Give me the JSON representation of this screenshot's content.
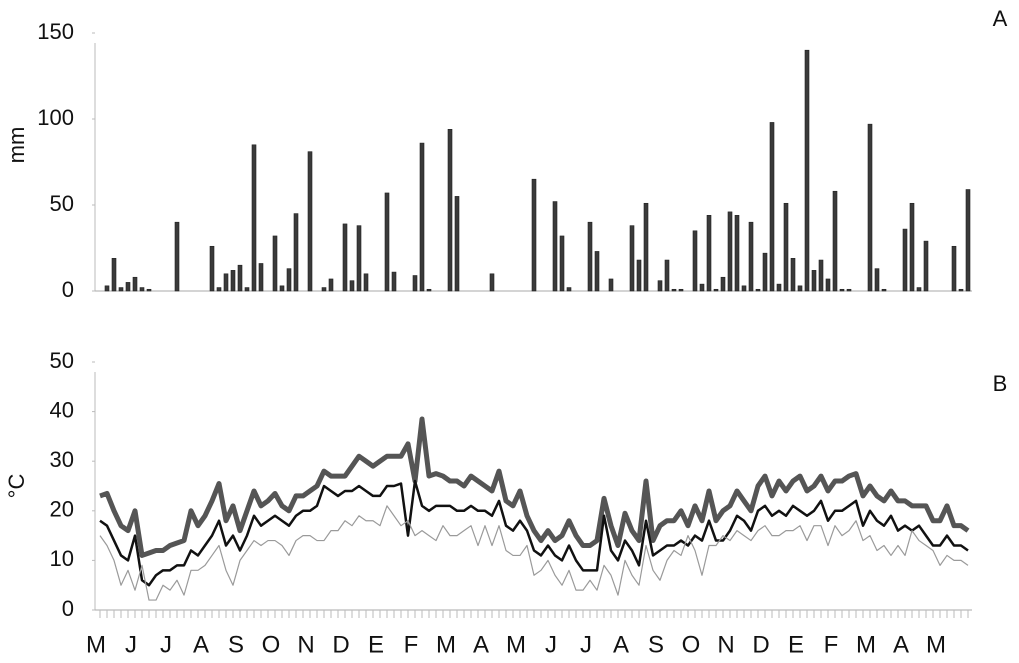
{
  "chart_data": [
    {
      "type": "bar",
      "ylabel": "mm",
      "panel_label": "A",
      "color": "#3a3a3a",
      "ylim": [
        0,
        150
      ],
      "yticks": [
        0,
        50,
        100,
        150
      ],
      "values": [
        0,
        3,
        19,
        2,
        5,
        8,
        2,
        1,
        0,
        0,
        0,
        40,
        0,
        0,
        0,
        0,
        26,
        2,
        10,
        12,
        15,
        2,
        85,
        16,
        0,
        32,
        3,
        13,
        45,
        0,
        81,
        0,
        2,
        7,
        0,
        39,
        6,
        38,
        10,
        0,
        0,
        57,
        11,
        0,
        0,
        9,
        86,
        1,
        0,
        0,
        94,
        55,
        0,
        0,
        0,
        0,
        10,
        0,
        0,
        0,
        0,
        0,
        65,
        0,
        0,
        52,
        32,
        2,
        0,
        0,
        40,
        23,
        0,
        7,
        0,
        0,
        38,
        18,
        51,
        0,
        6,
        18,
        1,
        1,
        0,
        35,
        4,
        44,
        1,
        8,
        46,
        44,
        3,
        40,
        1,
        22,
        98,
        4,
        51,
        19,
        3,
        140,
        12,
        18,
        7,
        58,
        1,
        1,
        0,
        0,
        97,
        13,
        1,
        0,
        0,
        36,
        51,
        2,
        29,
        0,
        0,
        0,
        26,
        1,
        59
      ]
    },
    {
      "type": "line",
      "ylabel": "°C",
      "panel_label": "B",
      "ylim": [
        0,
        50
      ],
      "yticks": [
        0,
        10,
        20,
        30,
        40,
        50
      ],
      "categories": [
        "M",
        null,
        null,
        null,
        null,
        "J",
        null,
        null,
        null,
        null,
        "J",
        null,
        null,
        null,
        null,
        "A",
        null,
        null,
        null,
        null,
        "S",
        null,
        null,
        null,
        null,
        "O",
        null,
        null,
        null,
        null,
        "N",
        null,
        null,
        null,
        null,
        "D",
        null,
        null,
        null,
        null,
        "E",
        null,
        null,
        null,
        null,
        "F",
        null,
        null,
        null,
        null,
        "M",
        null,
        null,
        null,
        null,
        "A",
        null,
        null,
        null,
        null,
        "M",
        null,
        null,
        null,
        null,
        "J",
        null,
        null,
        null,
        null,
        "J",
        null,
        null,
        null,
        null,
        "A",
        null,
        null,
        null,
        null,
        "S",
        null,
        null,
        null,
        null,
        "O",
        null,
        null,
        null,
        null,
        "N",
        null,
        null,
        null,
        null,
        "D",
        null,
        null,
        null,
        null,
        "E",
        null,
        null,
        null,
        null,
        "F",
        null,
        null,
        null,
        null,
        "M",
        null,
        null,
        null,
        null,
        "A",
        null,
        null,
        null,
        null,
        "M",
        null,
        null,
        null,
        null
      ],
      "series": [
        {
          "color": "#555555",
          "values": [
            23,
            23.5,
            20,
            17,
            16,
            20,
            11,
            11.5,
            12,
            12,
            13,
            13.5,
            14,
            20,
            17,
            19,
            22,
            25.5,
            18,
            21,
            16,
            20,
            24,
            21,
            22,
            23.5,
            21,
            20,
            23,
            23,
            24,
            25,
            28,
            27,
            27,
            27,
            29,
            31,
            30,
            29,
            30,
            31,
            31,
            31,
            33.5,
            26,
            38.5,
            27,
            27.5,
            27,
            26,
            26,
            25,
            27,
            26,
            25,
            24,
            28,
            22,
            21,
            24,
            19,
            16,
            14,
            16,
            14,
            15,
            18,
            15,
            13,
            13,
            14,
            22.5,
            17,
            13,
            19.5,
            16,
            14,
            26,
            14,
            17,
            18,
            18,
            20,
            17,
            21,
            18,
            24,
            18,
            20,
            21,
            24,
            22,
            20,
            25,
            27,
            23,
            26,
            24,
            26,
            27,
            24,
            25,
            27,
            24,
            26,
            26,
            27,
            27.5,
            23,
            25,
            23,
            22,
            24,
            22,
            22,
            21,
            21,
            21,
            18,
            18,
            21,
            17,
            17,
            16
          ]
        },
        {
          "color": "#111111",
          "values": [
            18,
            17,
            14,
            11,
            10,
            15,
            6,
            5,
            7,
            8,
            8,
            9,
            9,
            12,
            11,
            13,
            15,
            18,
            13,
            15,
            12,
            15,
            19,
            17,
            18,
            19,
            18,
            17,
            19,
            20,
            20,
            21,
            25,
            24,
            23,
            24,
            24,
            25,
            24,
            23,
            23,
            25,
            25,
            25.5,
            15,
            26,
            21,
            20,
            21,
            21,
            21,
            20,
            20,
            21,
            20,
            20,
            19,
            22,
            17,
            16,
            18,
            16,
            12,
            11,
            13,
            11,
            10,
            13,
            10,
            8,
            8,
            8,
            19,
            12,
            10,
            14,
            12,
            9,
            18,
            11,
            12,
            13,
            13,
            14,
            13,
            15,
            14,
            18,
            14,
            14,
            16,
            19,
            18,
            16,
            20,
            21,
            19,
            20,
            19,
            21,
            20,
            19,
            20,
            22,
            18,
            20,
            20,
            21,
            22,
            17,
            20,
            18,
            17,
            19,
            16,
            17,
            16,
            17,
            15,
            13,
            13,
            15,
            13,
            13,
            12
          ]
        },
        {
          "color": "#9a9a9a",
          "values": [
            15,
            13,
            10,
            5,
            8,
            4,
            9,
            2,
            2,
            5,
            4,
            6,
            3,
            8,
            8,
            9,
            11,
            13,
            8,
            5,
            10,
            12,
            14,
            13,
            14,
            14,
            13,
            11,
            14,
            15,
            15,
            14,
            14,
            16,
            16,
            18,
            17,
            19,
            18,
            18,
            17,
            21,
            19,
            17,
            18,
            15,
            16,
            15,
            14,
            17,
            15,
            15,
            16,
            17,
            13,
            17,
            13,
            17,
            12,
            11,
            11,
            13,
            7,
            8,
            10,
            7,
            5,
            8,
            4,
            4,
            6,
            4,
            9,
            7,
            3,
            10,
            7,
            5,
            13,
            8,
            6,
            10,
            12,
            11,
            15,
            12,
            7,
            13,
            13,
            15,
            14,
            16,
            15,
            14,
            16,
            17,
            15,
            15,
            16,
            16,
            17,
            14,
            17,
            17,
            13,
            17,
            15,
            16,
            18,
            14,
            15,
            12,
            13,
            11,
            13,
            11,
            16,
            14,
            13,
            12,
            9,
            11,
            10,
            10,
            9
          ]
        }
      ]
    }
  ]
}
